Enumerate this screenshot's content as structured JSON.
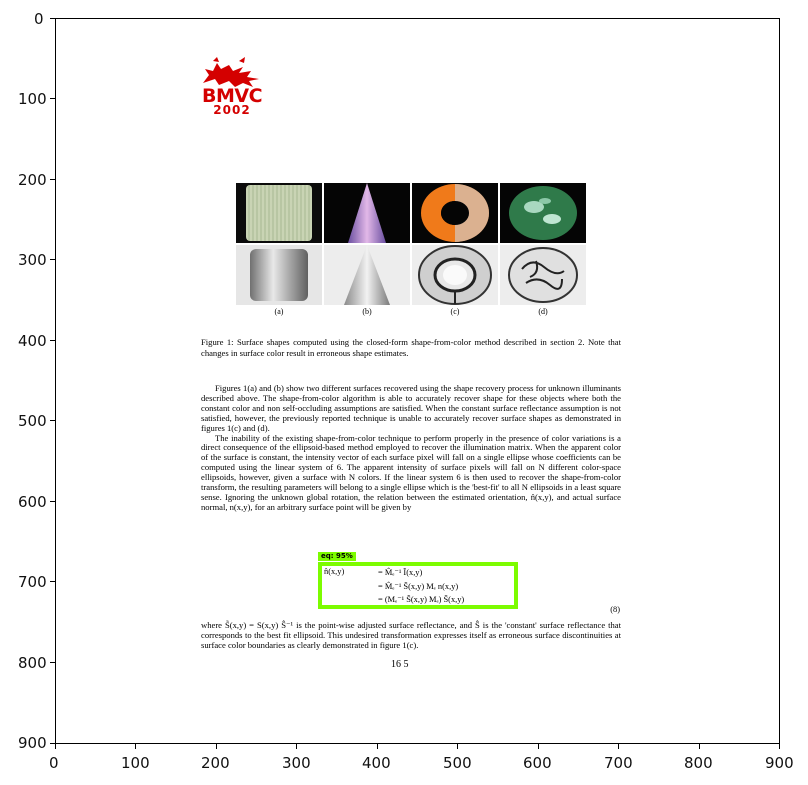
{
  "axes": {
    "x_ticks": [
      "0",
      "100",
      "200",
      "300",
      "400",
      "500",
      "600",
      "700",
      "800",
      "900"
    ],
    "y_ticks": [
      "0",
      "100",
      "200",
      "300",
      "400",
      "500",
      "600",
      "700",
      "800",
      "900"
    ]
  },
  "logo": {
    "text": "BMVC",
    "year": "2002"
  },
  "figure": {
    "sublabels": [
      "(a)",
      "(b)",
      "(c)",
      "(d)"
    ],
    "caption": "Figure 1: Surface shapes computed using the closed-form shape-from-color method described in section 2. Note that changes in surface color result in erroneous shape estimates."
  },
  "paragraphs": [
    "Figures 1(a) and (b) show two different surfaces recovered using the shape recovery process for unknown illuminants described above. The shape-from-color algorithm is able to accurately recover shape for these objects where both the constant color and non self-occluding assumptions are satisfied. When the constant surface reflectance assumption is not satisfied, however, the previously reported technique is unable to accurately recover surface shapes as demonstrated in figures 1(c) and (d).",
    "The inability of the existing shape-from-color technique to perform properly in the presence of color variations is a direct consequence of the ellipsoid-based method employed to recover the illumination matrix. When the apparent color of the surface is constant, the intensity vector of each surface pixel will fall on a single ellipse whose coefficients can be computed using the linear system of 6. The apparent intensity of surface pixels will fall on N different color-space ellipsoids, however, given a surface with N colors. If the linear system 6 is then used to recover the shape-from-color transform, the resulting parameters will belong to a single ellipse which is the 'best-fit' to all N ellipsoids in a least square sense. Ignoring the unknown global rotation, the relation between the estimated orientation, n̂(x,y), and actual surface normal, n(x,y), for an arbitrary surface point will be given by"
  ],
  "equation": {
    "lhs": "n̂(x,y)",
    "line1": "= M̂ₑ⁻¹ Ĩ(x,y)",
    "line2": "= M̂ₑ⁻¹ S̃(x,y) Mₑ n(x,y)",
    "line3": "= (Mₑ⁻¹ S̃(x,y) Mₑ) S̃(x,y)",
    "number": "(8)",
    "tag": "eq: 95%"
  },
  "closing": "where S̃(x,y) = S(x,y) Ŝ⁻¹ is the point-wise adjusted surface reflectance, and Ŝ is the 'constant' surface reflectance that corresponds to the best fit ellipsoid. This undesired transformation expresses itself as erroneous surface discontinuities at surface color boundaries as clearly demonstrated in figure 1(c).",
  "page_number": "16 5"
}
